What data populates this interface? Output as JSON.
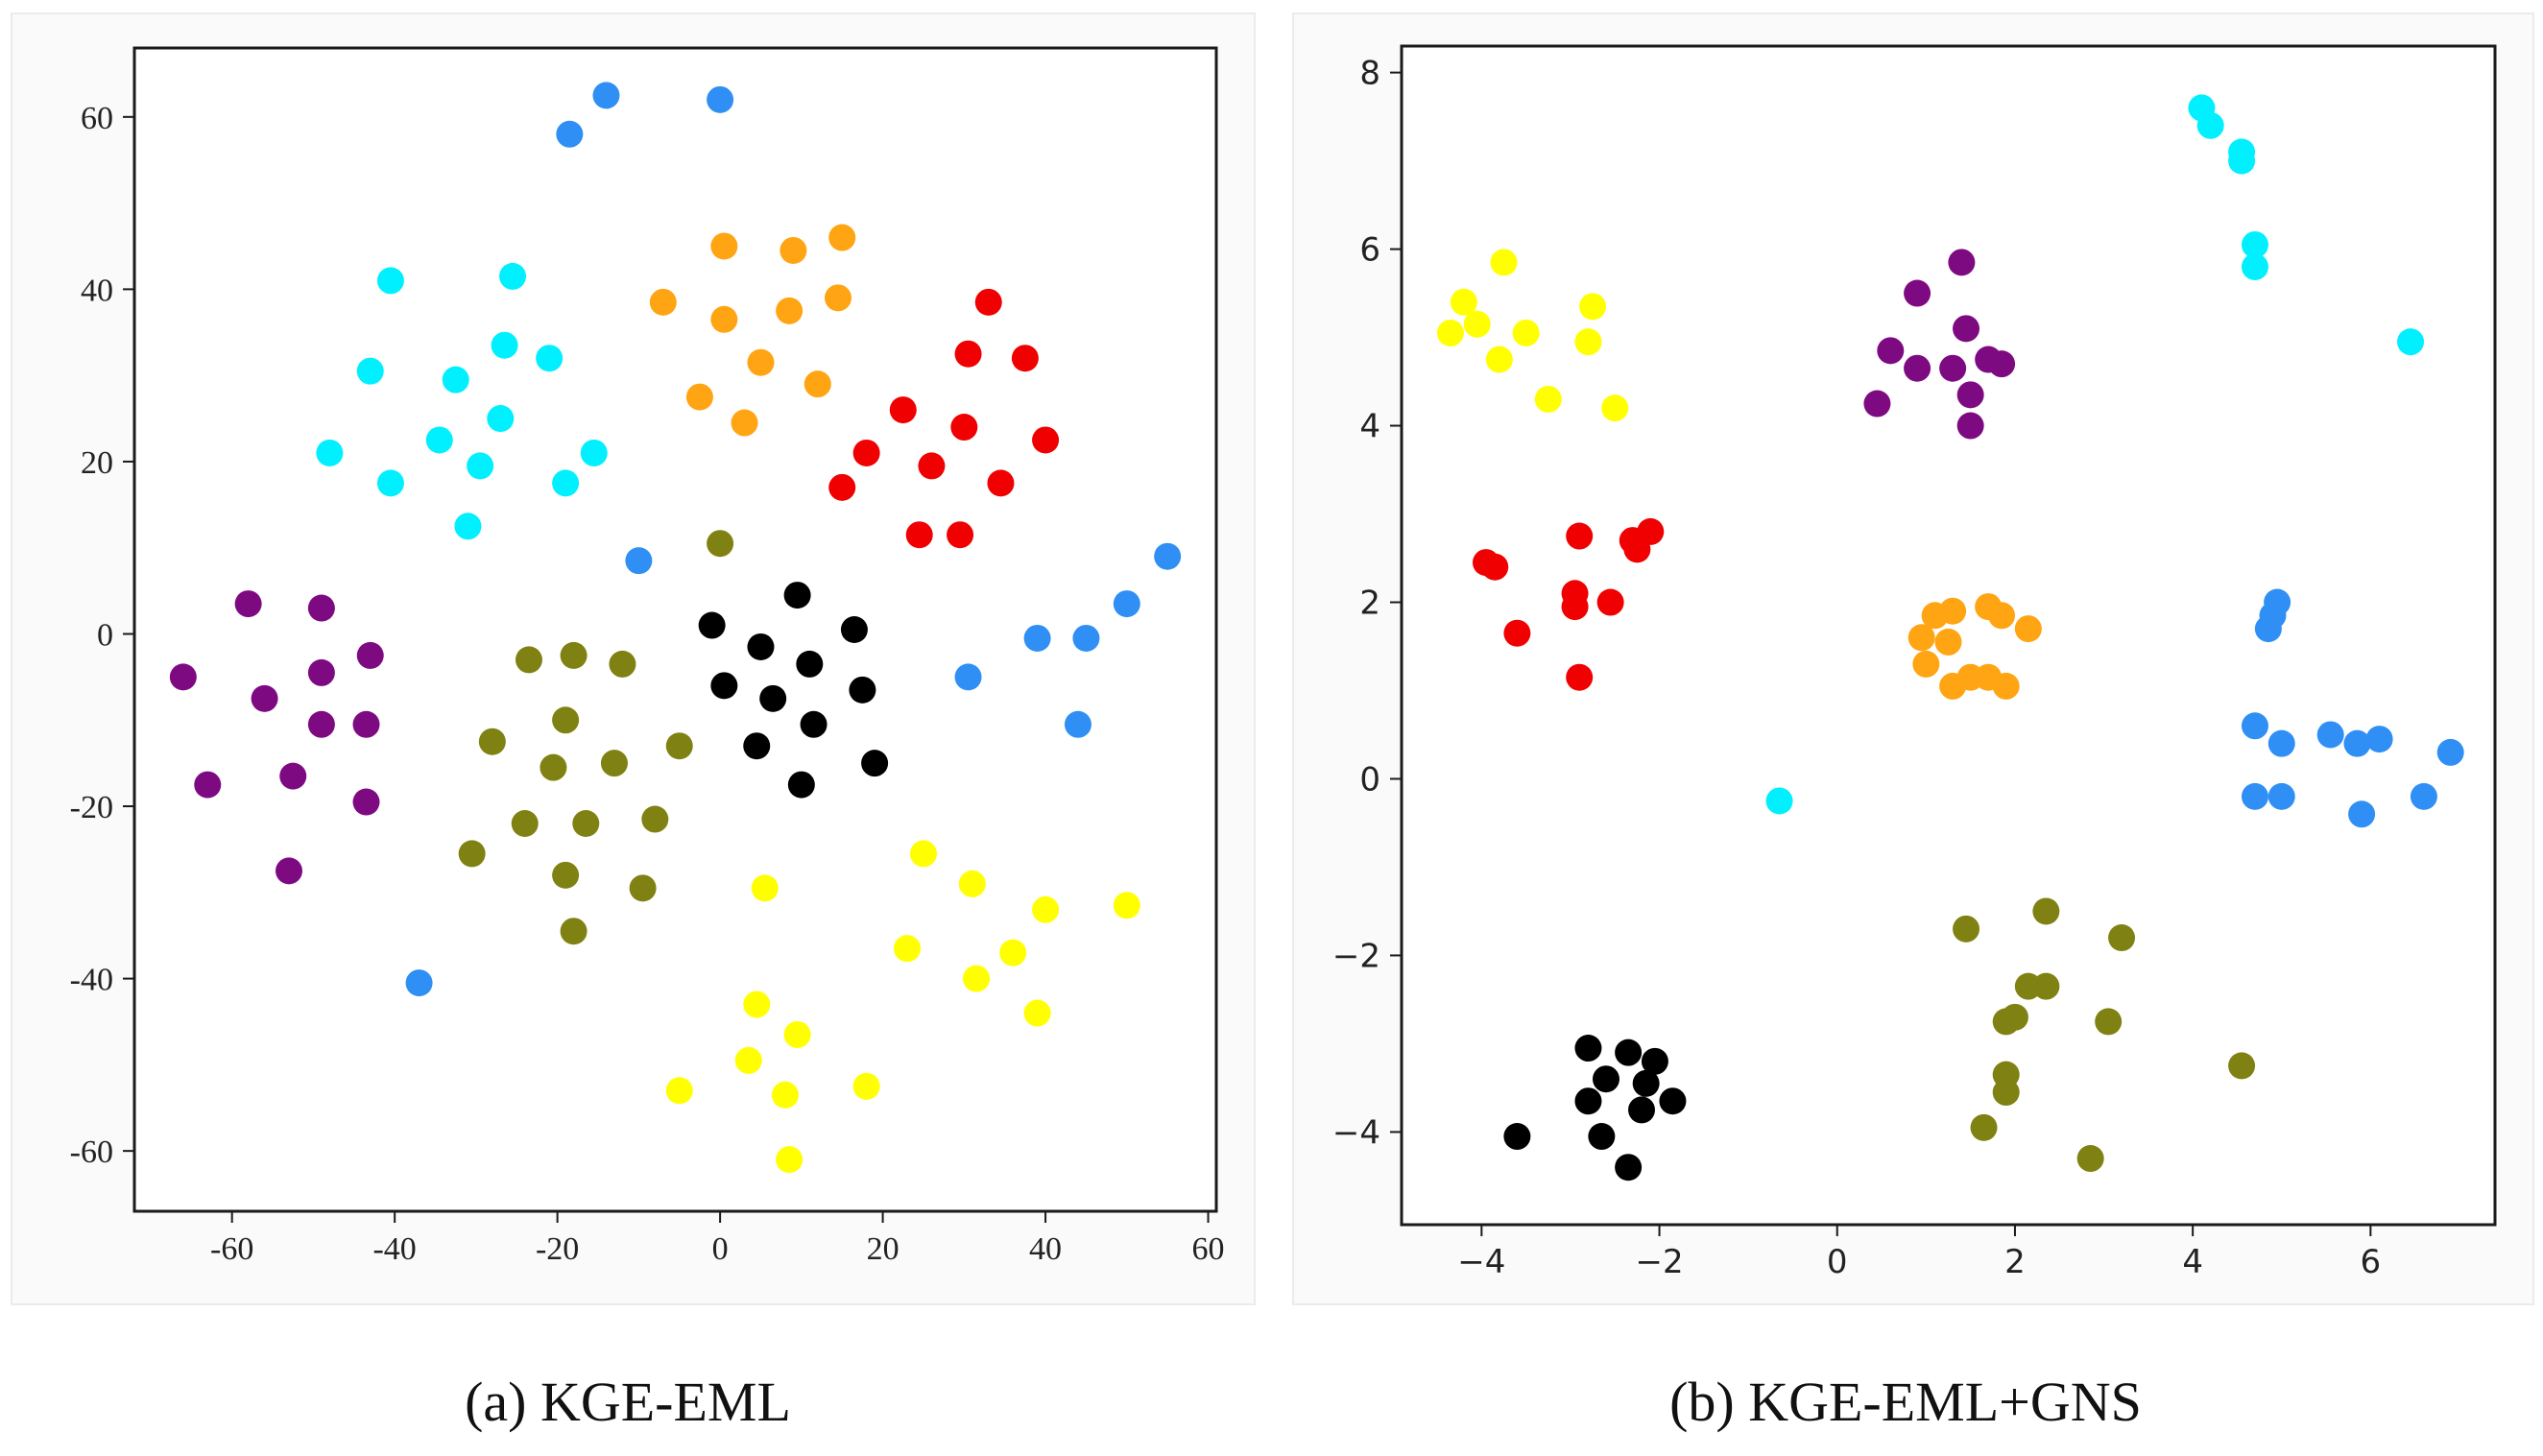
{
  "chart_data": [
    {
      "type": "scatter",
      "title": "",
      "caption": "(a) KGE-EML",
      "xlabel": "",
      "ylabel": "",
      "xlim": [
        -72,
        61
      ],
      "ylim": [
        -67,
        68
      ],
      "xticks": [
        -60,
        -40,
        -20,
        0,
        20,
        40,
        60
      ],
      "yticks": [
        60,
        40,
        20,
        0,
        -20,
        -40,
        -60
      ],
      "xtick_labels": [
        "-60",
        "-40",
        "-20",
        "0",
        "20",
        "40",
        "60"
      ],
      "ytick_labels": [
        "60",
        "40",
        "20",
        "0",
        "-20",
        "-40",
        "-60"
      ],
      "series": [
        {
          "name": "blue",
          "color": "#2f8ff5",
          "points": [
            [
              -14,
              62.5
            ],
            [
              0,
              62
            ],
            [
              -18.5,
              58
            ],
            [
              -10,
              8.5
            ],
            [
              55,
              9
            ],
            [
              50,
              3.5
            ],
            [
              39,
              -0.5
            ],
            [
              45,
              -0.5
            ],
            [
              30.5,
              -5
            ],
            [
              44,
              -10.5
            ],
            [
              -37,
              -40.5
            ]
          ]
        },
        {
          "name": "cyan",
          "color": "#00f0ff",
          "points": [
            [
              -40.5,
              41
            ],
            [
              -25.5,
              41.5
            ],
            [
              -26.5,
              33.5
            ],
            [
              -21,
              32
            ],
            [
              -43,
              30.5
            ],
            [
              -32.5,
              29.5
            ],
            [
              -27,
              25
            ],
            [
              -34.5,
              22.5
            ],
            [
              -48,
              21
            ],
            [
              -29.5,
              19.5
            ],
            [
              -15.5,
              21
            ],
            [
              -40.5,
              17.5
            ],
            [
              -19,
              17.5
            ],
            [
              -31,
              12.5
            ]
          ]
        },
        {
          "name": "orange",
          "color": "#ffa412",
          "points": [
            [
              15,
              46
            ],
            [
              0.5,
              45
            ],
            [
              9,
              44.5
            ],
            [
              14.5,
              39
            ],
            [
              -7,
              38.5
            ],
            [
              8.5,
              37.5
            ],
            [
              0.5,
              36.5
            ],
            [
              5,
              31.5
            ],
            [
              12,
              29
            ],
            [
              -2.5,
              27.5
            ],
            [
              3,
              24.5
            ]
          ]
        },
        {
          "name": "red",
          "color": "#f00000",
          "points": [
            [
              33,
              38.5
            ],
            [
              30.5,
              32.5
            ],
            [
              37.5,
              32
            ],
            [
              22.5,
              26
            ],
            [
              30,
              24
            ],
            [
              40,
              22.5
            ],
            [
              18,
              21
            ],
            [
              26,
              19.5
            ],
            [
              34.5,
              17.5
            ],
            [
              15,
              17
            ],
            [
              24.5,
              11.5
            ],
            [
              29.5,
              11.5
            ]
          ]
        },
        {
          "name": "purple",
          "color": "#7e0a82",
          "points": [
            [
              -58,
              3.5
            ],
            [
              -49,
              3
            ],
            [
              -66,
              -5
            ],
            [
              -43,
              -2.5
            ],
            [
              -49,
              -4.5
            ],
            [
              -56,
              -7.5
            ],
            [
              -49,
              -10.5
            ],
            [
              -43.5,
              -10.5
            ],
            [
              -52.5,
              -16.5
            ],
            [
              -63,
              -17.5
            ],
            [
              -43.5,
              -19.5
            ],
            [
              -53,
              -27.5
            ]
          ]
        },
        {
          "name": "black",
          "color": "#000000",
          "points": [
            [
              9.5,
              4.5
            ],
            [
              -1,
              1
            ],
            [
              16.5,
              0.5
            ],
            [
              5,
              -1.5
            ],
            [
              11,
              -3.5
            ],
            [
              0.5,
              -6
            ],
            [
              6.5,
              -7.5
            ],
            [
              17.5,
              -6.5
            ],
            [
              11.5,
              -10.5
            ],
            [
              4.5,
              -13
            ],
            [
              19,
              -15
            ],
            [
              10,
              -17.5
            ]
          ]
        },
        {
          "name": "olive",
          "color": "#7f8212",
          "points": [
            [
              0,
              10.5
            ],
            [
              -23.5,
              -3
            ],
            [
              -18,
              -2.5
            ],
            [
              -12,
              -3.5
            ],
            [
              -19,
              -10
            ],
            [
              -5,
              -13
            ],
            [
              -28,
              -12.5
            ],
            [
              -20.5,
              -15.5
            ],
            [
              -13,
              -15
            ],
            [
              -24,
              -22
            ],
            [
              -16.5,
              -22
            ],
            [
              -8,
              -21.5
            ],
            [
              -30.5,
              -25.5
            ],
            [
              -19,
              -28
            ],
            [
              -9.5,
              -29.5
            ],
            [
              -18,
              -34.5
            ]
          ]
        },
        {
          "name": "yellow",
          "color": "#ffff00",
          "points": [
            [
              25,
              -25.5
            ],
            [
              31,
              -29
            ],
            [
              5.5,
              -29.5
            ],
            [
              40,
              -32
            ],
            [
              50,
              -31.5
            ],
            [
              23,
              -36.5
            ],
            [
              36,
              -37
            ],
            [
              31.5,
              -40
            ],
            [
              39,
              -44
            ],
            [
              4.5,
              -43
            ],
            [
              9.5,
              -46.5
            ],
            [
              3.5,
              -49.5
            ],
            [
              -5,
              -53
            ],
            [
              8,
              -53.5
            ],
            [
              18,
              -52.5
            ],
            [
              8.5,
              -61
            ]
          ]
        }
      ]
    },
    {
      "type": "scatter",
      "title": "",
      "caption": "(b) KGE-EML+GNS",
      "xlabel": "",
      "ylabel": "",
      "xlim": [
        -4.9,
        7.4
      ],
      "ylim": [
        -5.05,
        8.3
      ],
      "xticks": [
        -4,
        -2,
        0,
        2,
        4,
        6
      ],
      "yticks": [
        8,
        6,
        4,
        2,
        0,
        -2,
        -4
      ],
      "xtick_labels": [
        "−4",
        "−2",
        "0",
        "2",
        "4",
        "6"
      ],
      "ytick_labels": [
        "8",
        "6",
        "4",
        "2",
        "0",
        "−2",
        "−4"
      ],
      "series": [
        {
          "name": "cyan",
          "color": "#00f0ff",
          "points": [
            [
              4.1,
              7.6
            ],
            [
              4.2,
              7.4
            ],
            [
              4.55,
              7.1
            ],
            [
              4.55,
              7.0
            ],
            [
              4.7,
              6.05
            ],
            [
              4.7,
              5.8
            ],
            [
              6.45,
              4.95
            ],
            [
              -0.65,
              -0.25
            ]
          ]
        },
        {
          "name": "yellow",
          "color": "#ffff00",
          "points": [
            [
              -3.75,
              5.85
            ],
            [
              -4.2,
              5.4
            ],
            [
              -4.05,
              5.15
            ],
            [
              -4.35,
              5.05
            ],
            [
              -3.5,
              5.05
            ],
            [
              -2.75,
              5.35
            ],
            [
              -3.8,
              4.75
            ],
            [
              -2.8,
              4.95
            ],
            [
              -3.25,
              4.3
            ],
            [
              -2.5,
              4.2
            ]
          ]
        },
        {
          "name": "purple",
          "color": "#7e0a82",
          "points": [
            [
              1.4,
              5.85
            ],
            [
              0.9,
              5.5
            ],
            [
              1.45,
              5.1
            ],
            [
              0.6,
              4.85
            ],
            [
              0.9,
              4.65
            ],
            [
              1.3,
              4.65
            ],
            [
              1.7,
              4.75
            ],
            [
              1.85,
              4.7
            ],
            [
              1.5,
              4.35
            ],
            [
              0.45,
              4.25
            ],
            [
              1.5,
              4.0
            ]
          ]
        },
        {
          "name": "red",
          "color": "#f00000",
          "points": [
            [
              -2.9,
              2.75
            ],
            [
              -2.1,
              2.8
            ],
            [
              -2.3,
              2.7
            ],
            [
              -2.25,
              2.6
            ],
            [
              -3.95,
              2.45
            ],
            [
              -3.85,
              2.4
            ],
            [
              -2.95,
              2.1
            ],
            [
              -2.95,
              1.95
            ],
            [
              -2.55,
              2.0
            ],
            [
              -3.6,
              1.65
            ],
            [
              -2.9,
              1.15
            ]
          ]
        },
        {
          "name": "orange",
          "color": "#ffa412",
          "points": [
            [
              1.7,
              1.95
            ],
            [
              1.3,
              1.9
            ],
            [
              1.1,
              1.85
            ],
            [
              1.85,
              1.85
            ],
            [
              2.15,
              1.7
            ],
            [
              0.95,
              1.6
            ],
            [
              1.25,
              1.55
            ],
            [
              1.0,
              1.3
            ],
            [
              1.5,
              1.15
            ],
            [
              1.7,
              1.15
            ],
            [
              1.3,
              1.05
            ],
            [
              1.9,
              1.05
            ]
          ]
        },
        {
          "name": "blue",
          "color": "#2f8ff5",
          "points": [
            [
              4.95,
              2.0
            ],
            [
              4.9,
              1.85
            ],
            [
              4.85,
              1.7
            ],
            [
              4.7,
              0.6
            ],
            [
              5.0,
              0.4
            ],
            [
              5.55,
              0.5
            ],
            [
              5.85,
              0.4
            ],
            [
              6.1,
              0.45
            ],
            [
              6.9,
              0.3
            ],
            [
              4.7,
              -0.2
            ],
            [
              5.0,
              -0.2
            ],
            [
              5.9,
              -0.4
            ],
            [
              6.6,
              -0.2
            ]
          ]
        },
        {
          "name": "olive",
          "color": "#7f8212",
          "points": [
            [
              2.35,
              -1.5
            ],
            [
              1.45,
              -1.7
            ],
            [
              3.2,
              -1.8
            ],
            [
              2.15,
              -2.35
            ],
            [
              2.35,
              -2.35
            ],
            [
              1.9,
              -2.75
            ],
            [
              2.0,
              -2.7
            ],
            [
              3.05,
              -2.75
            ],
            [
              1.9,
              -3.35
            ],
            [
              1.9,
              -3.55
            ],
            [
              4.55,
              -3.25
            ],
            [
              1.65,
              -3.95
            ],
            [
              2.85,
              -4.3
            ]
          ]
        },
        {
          "name": "black",
          "color": "#000000",
          "points": [
            [
              -2.8,
              -3.05
            ],
            [
              -2.35,
              -3.1
            ],
            [
              -2.05,
              -3.2
            ],
            [
              -2.6,
              -3.4
            ],
            [
              -2.15,
              -3.45
            ],
            [
              -2.8,
              -3.65
            ],
            [
              -1.85,
              -3.65
            ],
            [
              -2.2,
              -3.75
            ],
            [
              -3.6,
              -4.05
            ],
            [
              -2.65,
              -4.05
            ],
            [
              -2.35,
              -4.4
            ]
          ]
        }
      ]
    }
  ]
}
